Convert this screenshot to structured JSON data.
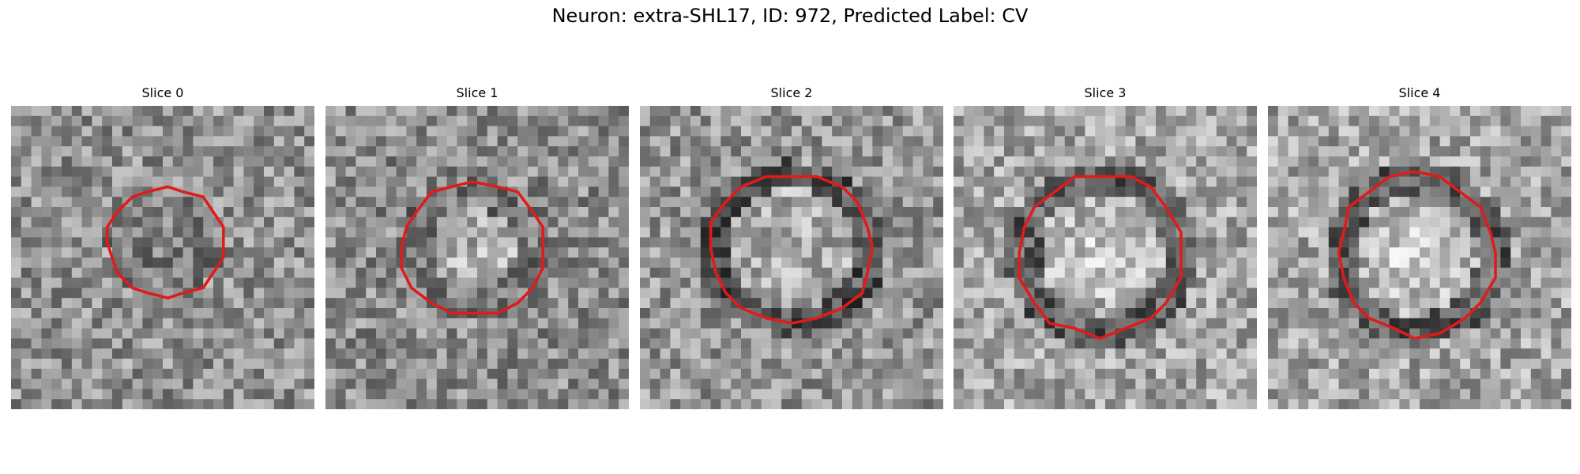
{
  "figure": {
    "title": "Neuron: extra-SHL17, ID: 972, Predicted Label: CV",
    "contour_color": "#e01b1b"
  },
  "slices": [
    {
      "title": "Slice 0",
      "contour": {
        "center": [
          0.51,
          0.45
        ],
        "radius": [
          0.39,
          0.36
        ]
      },
      "blob": "dark-ring-weak"
    },
    {
      "title": "Slice 1",
      "contour": {
        "center": [
          0.49,
          0.47
        ],
        "radius": [
          0.48,
          0.44
        ]
      },
      "blob": "mixed"
    },
    {
      "title": "Slice 2",
      "contour": {
        "center": [
          0.5,
          0.47
        ],
        "radius": [
          0.54,
          0.5
        ]
      },
      "blob": "dark-ring"
    },
    {
      "title": "Slice 3",
      "contour": {
        "center": [
          0.49,
          0.49
        ],
        "radius": [
          0.55,
          0.53
        ]
      },
      "blob": "bright-center"
    },
    {
      "title": "Slice 4",
      "contour": {
        "center": [
          0.49,
          0.49
        ],
        "radius": [
          0.53,
          0.53
        ]
      },
      "blob": "bright-center"
    }
  ]
}
